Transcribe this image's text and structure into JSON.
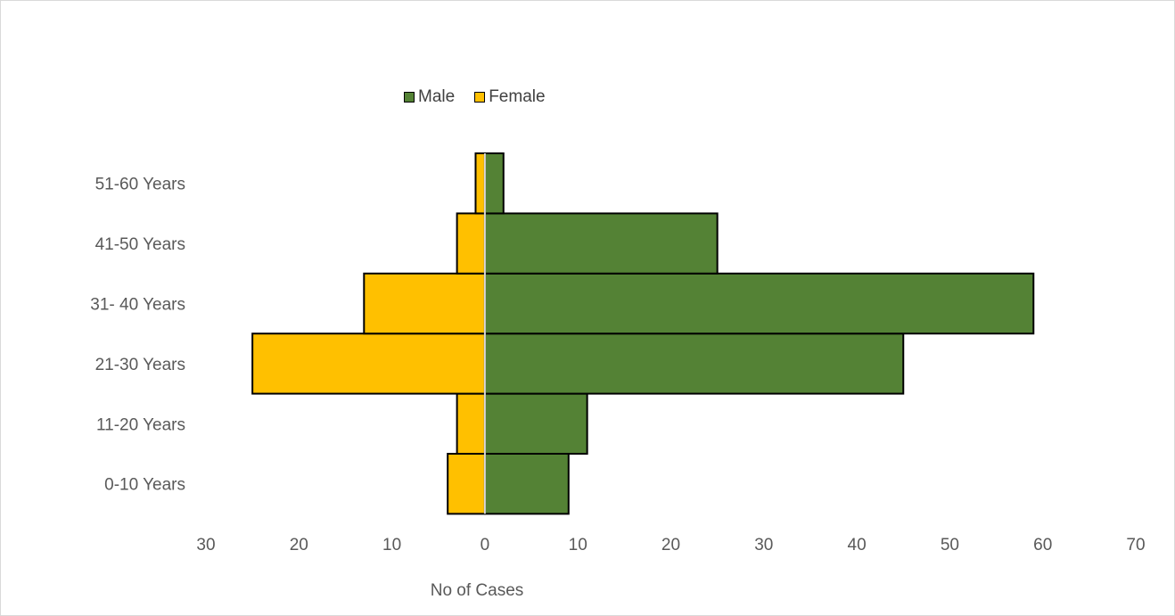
{
  "chart_data": {
    "type": "bar",
    "orientation": "horizontal",
    "layout": "population-pyramid",
    "categories": [
      "0-10 Years",
      "11-20 Years",
      "21-30 Years",
      "31- 40 Years",
      "41-50 Years",
      "51-60 Years"
    ],
    "series": [
      {
        "name": "Male",
        "values": [
          9,
          11,
          45,
          59,
          25,
          2
        ],
        "color": "#548235",
        "direction": "positive"
      },
      {
        "name": "Female",
        "values": [
          4,
          3,
          25,
          13,
          3,
          1
        ],
        "color": "#FFC000",
        "direction": "negative"
      }
    ],
    "xlabel": "No of Cases",
    "ylabel": "",
    "xlim": [
      -30,
      70
    ],
    "x_ticks": [
      -30,
      -20,
      -10,
      0,
      10,
      20,
      30,
      40,
      50,
      60,
      70
    ],
    "x_tick_labels": [
      "30",
      "20",
      "10",
      "0",
      "10",
      "20",
      "30",
      "40",
      "50",
      "60",
      "70"
    ],
    "grid": false,
    "legend_position": "top"
  }
}
